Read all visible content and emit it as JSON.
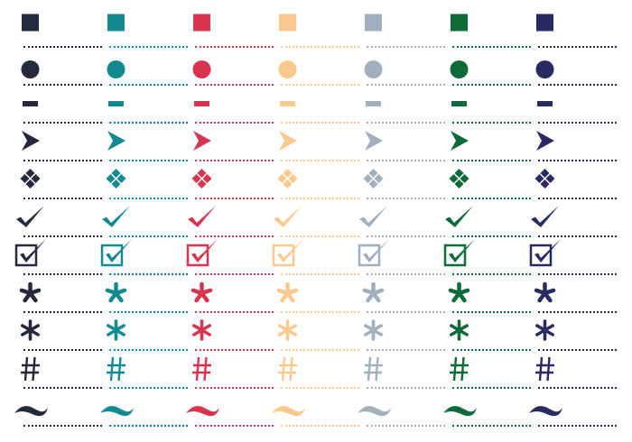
{
  "palette": [
    {
      "name": "charcoal",
      "color": "#242a3b"
    },
    {
      "name": "teal",
      "color": "#138a8f"
    },
    {
      "name": "crimson",
      "color": "#d8344f"
    },
    {
      "name": "peach",
      "color": "#fbc98e"
    },
    {
      "name": "slate-gray",
      "color": "#a2afbd"
    },
    {
      "name": "forest-green",
      "color": "#0d6b3a"
    },
    {
      "name": "navy",
      "color": "#2a2a63"
    }
  ],
  "bullet_rows": [
    {
      "icon": "square-icon"
    },
    {
      "icon": "circle-icon"
    },
    {
      "icon": "dash-icon"
    },
    {
      "icon": "arrowhead-icon"
    },
    {
      "icon": "diamond-cluster-icon"
    },
    {
      "icon": "checkmark-icon"
    },
    {
      "icon": "checkbox-checked-icon"
    },
    {
      "icon": "asterisk-bold-icon"
    },
    {
      "icon": "asterisk-round-icon"
    },
    {
      "icon": "hash-icon"
    },
    {
      "icon": "tilde-icon"
    }
  ]
}
